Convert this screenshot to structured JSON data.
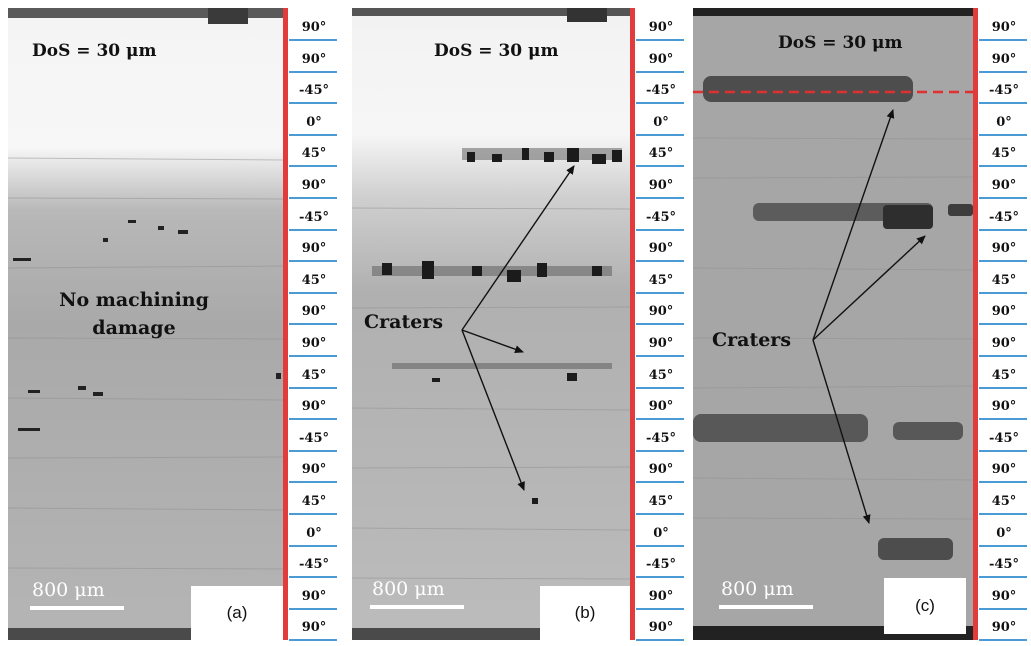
{
  "panels": [
    {
      "id": "a",
      "dos": "DoS = 30 μm",
      "annotation_lines": [
        "No machining",
        "damage"
      ],
      "scale": "800 μm",
      "label": "(a)",
      "angles": [
        "90°",
        "90°",
        "-45°",
        "0°",
        "45°",
        "90°",
        "-45°",
        "90°",
        "45°",
        "90°",
        "90°",
        "45°",
        "90°",
        "-45°",
        "90°",
        "45°",
        "0°",
        "-45°",
        "90°",
        "90°"
      ]
    },
    {
      "id": "b",
      "dos": "DoS = 30 μm",
      "annotation": "Craters",
      "scale": "800 μm",
      "label": "(b)",
      "angles": [
        "90°",
        "90°",
        "-45°",
        "0°",
        "45°",
        "90°",
        "-45°",
        "90°",
        "45°",
        "90°",
        "90°",
        "45°",
        "90°",
        "-45°",
        "90°",
        "45°",
        "0°",
        "-45°",
        "90°",
        "90°"
      ]
    },
    {
      "id": "c",
      "dos": "DoS = 30 μm",
      "annotation": "Craters",
      "scale": "800 μm",
      "label": "(c)",
      "angles": [
        "90°",
        "90°",
        "-45°",
        "0°",
        "45°",
        "90°",
        "-45°",
        "90°",
        "45°",
        "90°",
        "90°",
        "45°",
        "90°",
        "-45°",
        "90°",
        "45°",
        "0°",
        "-45°",
        "90°",
        "90°"
      ]
    }
  ]
}
